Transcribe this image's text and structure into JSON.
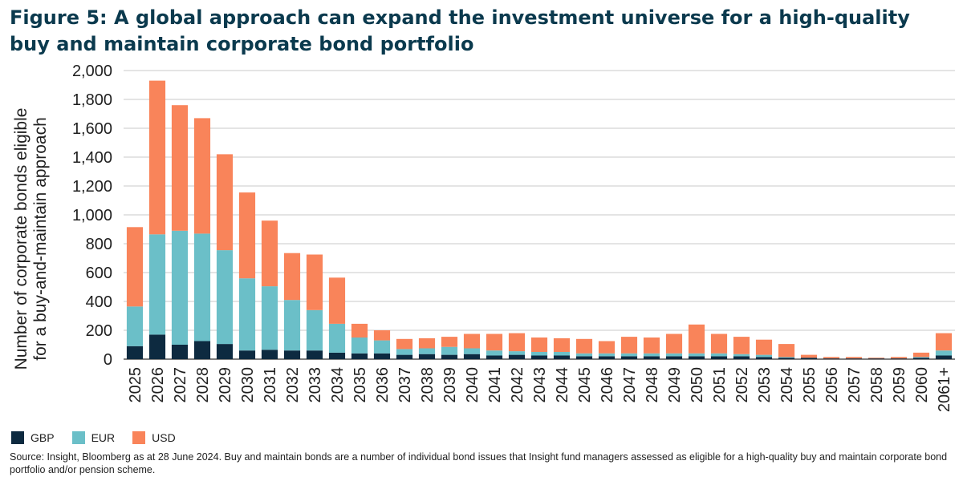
{
  "title": "Figure 5: A global approach can expand the investment universe for a high-quality buy and maintain corporate bond portfolio",
  "source": "Source: Insight, Bloomberg as at 28 June 2024. Buy and maintain bonds are a number of individual bond issues that Insight fund managers assessed as eligible for a high-quality buy and maintain corporate bond portfolio and/or pension scheme.",
  "colors": {
    "GBP": "#0d2a40",
    "EUR": "#6bbfc8",
    "USD": "#f9845a",
    "grid": "#c8c8c8",
    "axis": "#333333"
  },
  "chart_data": {
    "type": "bar",
    "stacked": true,
    "title": "Figure 5: A global approach can expand the investment universe for a high-quality buy and maintain corporate bond portfolio",
    "xlabel": "",
    "ylabel_lines": [
      "Number of corporate bonds eligible",
      "for a buy-and-maintain approach"
    ],
    "ylim": [
      0,
      2000
    ],
    "yticks": [
      0,
      200,
      400,
      600,
      800,
      1000,
      1200,
      1400,
      1600,
      1800,
      2000
    ],
    "ytick_labels": [
      "0",
      "200",
      "400",
      "600",
      "800",
      "1,000",
      "1,200",
      "1,400",
      "1,600",
      "1,800",
      "2,000"
    ],
    "grid": true,
    "legend_position": "bottom-left",
    "categories": [
      "2025",
      "2026",
      "2027",
      "2028",
      "2029",
      "2030",
      "2031",
      "2032",
      "2033",
      "2034",
      "2035",
      "2036",
      "2037",
      "2038",
      "2039",
      "2040",
      "2041",
      "2042",
      "2043",
      "2044",
      "2045",
      "2046",
      "2047",
      "2048",
      "2049",
      "2050",
      "2051",
      "2052",
      "2053",
      "2054",
      "2055",
      "2056",
      "2057",
      "2058",
      "2059",
      "2060",
      "2061+"
    ],
    "series": [
      {
        "name": "GBP",
        "values": [
          90,
          170,
          100,
          125,
          105,
          60,
          65,
          60,
          60,
          45,
          40,
          40,
          30,
          35,
          30,
          35,
          25,
          30,
          25,
          25,
          20,
          20,
          20,
          20,
          20,
          20,
          20,
          20,
          15,
          10,
          10,
          5,
          5,
          5,
          5,
          10,
          25
        ]
      },
      {
        "name": "EUR",
        "values": [
          275,
          695,
          790,
          745,
          650,
          500,
          440,
          350,
          280,
          200,
          110,
          90,
          40,
          40,
          55,
          40,
          35,
          25,
          25,
          25,
          20,
          20,
          20,
          20,
          20,
          20,
          20,
          15,
          15,
          5,
          0,
          0,
          0,
          0,
          0,
          5,
          35
        ]
      },
      {
        "name": "USD",
        "values": [
          550,
          1065,
          870,
          800,
          665,
          595,
          455,
          325,
          385,
          320,
          95,
          70,
          70,
          70,
          70,
          100,
          115,
          125,
          100,
          95,
          100,
          85,
          115,
          110,
          135,
          200,
          135,
          120,
          105,
          90,
          20,
          10,
          10,
          5,
          10,
          30,
          120
        ]
      }
    ]
  }
}
